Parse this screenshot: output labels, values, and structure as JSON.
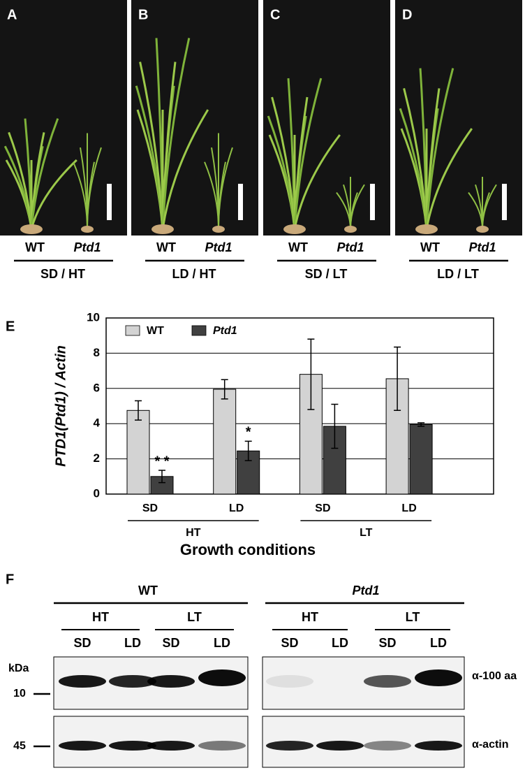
{
  "panels_top": [
    {
      "label": "A",
      "genotypes": [
        "WT",
        "Ptd1"
      ],
      "condition": "SD / HT"
    },
    {
      "label": "B",
      "genotypes": [
        "WT",
        "Ptd1"
      ],
      "condition": "LD / HT"
    },
    {
      "label": "C",
      "genotypes": [
        "WT",
        "Ptd1"
      ],
      "condition": "SD / LT"
    },
    {
      "label": "D",
      "genotypes": [
        "WT",
        "Ptd1"
      ],
      "condition": "LD / LT"
    }
  ],
  "chart_data": {
    "type": "bar",
    "panel_label": "E",
    "ylabel": "PTD1(Ptd1) / Actin",
    "xlabel": "Growth conditions",
    "categories": [
      "SD",
      "LD",
      "SD",
      "LD"
    ],
    "groups": [
      "HT",
      "LT"
    ],
    "series": [
      {
        "name": "WT",
        "color": "#d3d3d3",
        "values": [
          4.75,
          5.95,
          6.8,
          6.55
        ],
        "errors": [
          0.55,
          0.55,
          2.0,
          1.8
        ]
      },
      {
        "name": "Ptd1",
        "color": "#404040",
        "values": [
          1.0,
          2.45,
          3.85,
          3.95
        ],
        "errors": [
          0.35,
          0.55,
          1.25,
          0.1
        ]
      }
    ],
    "annotations": [
      "* *",
      "*"
    ],
    "ylim": [
      0,
      10
    ],
    "yticks": [
      0,
      2,
      4,
      6,
      8,
      10
    ],
    "grid": true
  },
  "blot": {
    "label": "F",
    "genotypes": [
      "WT",
      "Ptd1"
    ],
    "temperatures": [
      "HT",
      "LT",
      "HT",
      "LT"
    ],
    "photoperiods": [
      "SD",
      "LD",
      "SD",
      "LD",
      "SD",
      "LD",
      "SD",
      "LD"
    ],
    "marker_unit": "kDa",
    "markers": [
      10,
      45
    ],
    "antibodies": [
      "α-100 aa",
      "α-actin"
    ]
  }
}
